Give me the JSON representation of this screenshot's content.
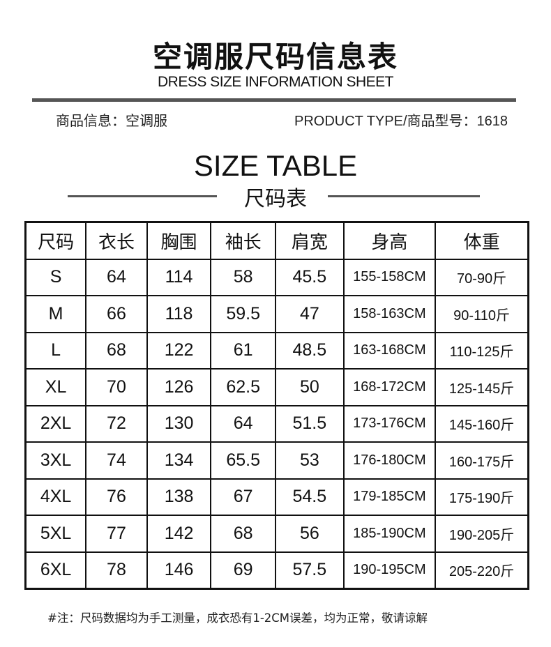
{
  "header": {
    "title": "空调服尺码信息表",
    "subtitle": "DRESS SIZE INFORMATION SHEET",
    "product_info": "商品信息：空调服",
    "product_type": "PRODUCT TYPE/商品型号：1618"
  },
  "section": {
    "title": "SIZE TABLE",
    "subtitle": "尺码表"
  },
  "table": {
    "columns": [
      "尺码",
      "衣长",
      "胸围",
      "袖长",
      "肩宽",
      "身高",
      "体重"
    ],
    "rows": [
      [
        "S",
        "64",
        "114",
        "58",
        "45.5",
        "155-158CM",
        "70-90斤"
      ],
      [
        "M",
        "66",
        "118",
        "59.5",
        "47",
        "158-163CM",
        "90-110斤"
      ],
      [
        "L",
        "68",
        "122",
        "61",
        "48.5",
        "163-168CM",
        "110-125斤"
      ],
      [
        "XL",
        "70",
        "126",
        "62.5",
        "50",
        "168-172CM",
        "125-145斤"
      ],
      [
        "2XL",
        "72",
        "130",
        "64",
        "51.5",
        "173-176CM",
        "145-160斤"
      ],
      [
        "3XL",
        "74",
        "134",
        "65.5",
        "53",
        "176-180CM",
        "160-175斤"
      ],
      [
        "4XL",
        "76",
        "138",
        "67",
        "54.5",
        "179-185CM",
        "175-190斤"
      ],
      [
        "5XL",
        "77",
        "142",
        "68",
        "56",
        "185-190CM",
        "190-205斤"
      ],
      [
        "6XL",
        "78",
        "146",
        "69",
        "57.5",
        "190-195CM",
        "205-220斤"
      ]
    ]
  },
  "note": "#注：尺码数据均为手工测量，成衣恐有1-2CM误差，均为正常，敬请谅解"
}
